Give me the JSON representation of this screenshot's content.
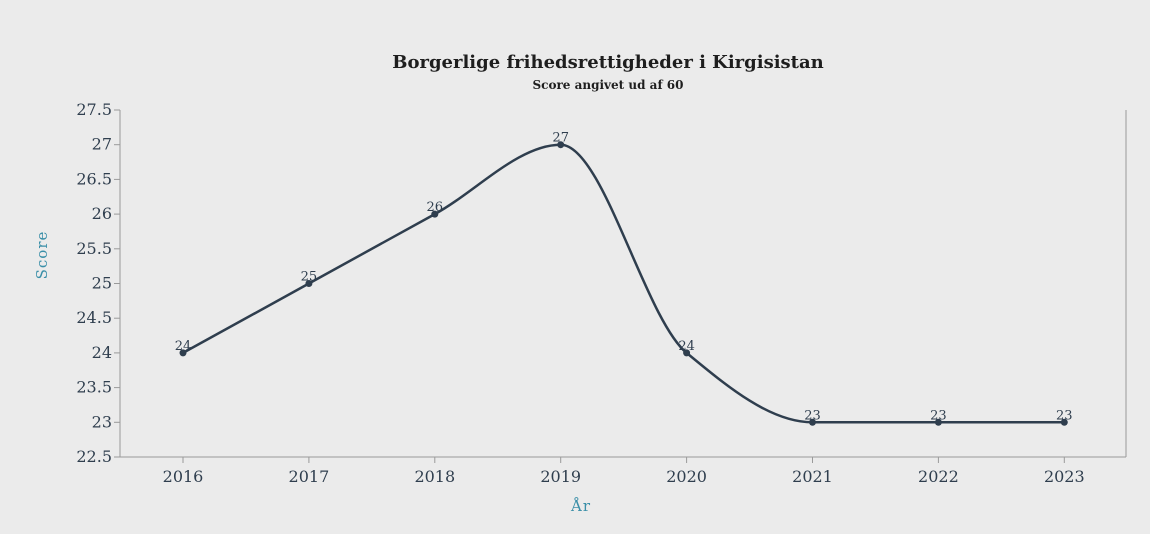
{
  "chart_data": {
    "type": "line",
    "title": "Borgerlige frihedsrettigheder i Kirgisistan",
    "subtitle": "Score angivet ud af 60",
    "xlabel": "År",
    "ylabel": "Score",
    "categories": [
      "2016",
      "2017",
      "2018",
      "2019",
      "2020",
      "2021",
      "2022",
      "2023"
    ],
    "values": [
      24,
      25,
      26,
      27,
      24,
      23,
      23,
      23
    ],
    "ylim": [
      22.5,
      27.5
    ],
    "yticks": [
      "22.5",
      "23",
      "23.5",
      "24",
      "24.5",
      "25",
      "25.5",
      "26",
      "26.5",
      "27",
      "27.5"
    ],
    "line_color": "#2f3e4e",
    "smooth": true,
    "grid": false,
    "legend": "none"
  }
}
